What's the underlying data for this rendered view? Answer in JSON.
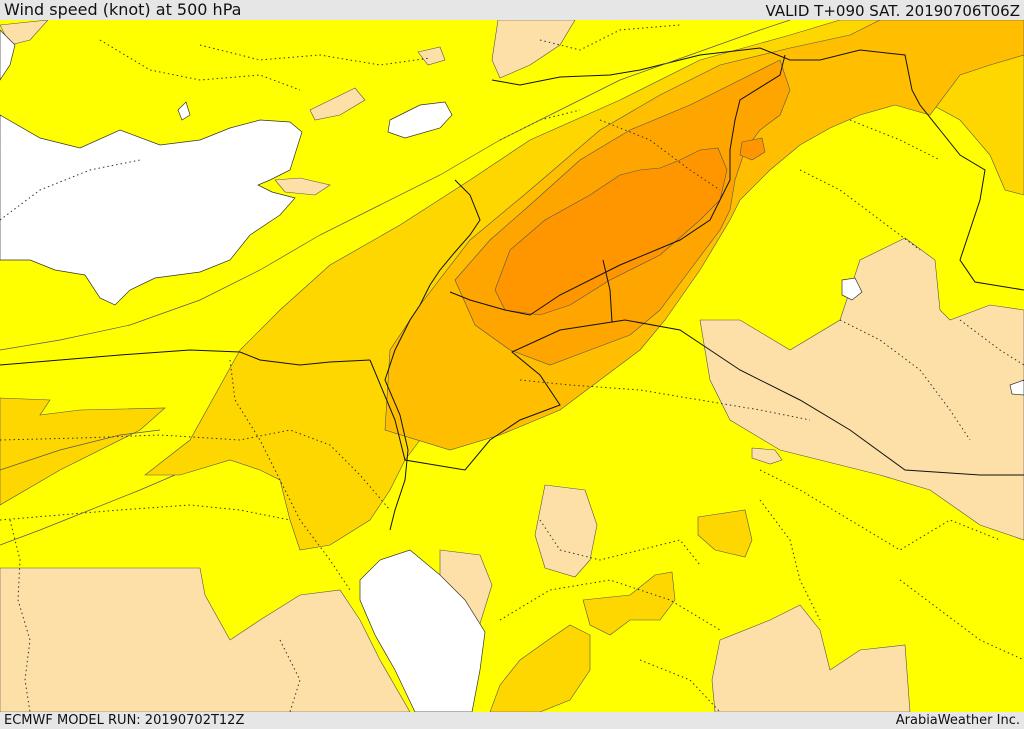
{
  "header": {
    "title": "Wind speed (knot) at 500 hPa",
    "valid": "VALID T+090 SAT. 20190706T06Z"
  },
  "footer": {
    "model_run": "ECMWF MODEL RUN: 20190702T12Z",
    "credit": "ArabiaWeather Inc."
  },
  "colors": {
    "sea": "#ffffff",
    "low_wind": "#fde0a8",
    "yellow": "#ffff00",
    "gold": "#ffd700",
    "amber": "#ffbf00",
    "orange": "#ffa500",
    "dark_orange": "#ff9600"
  }
}
